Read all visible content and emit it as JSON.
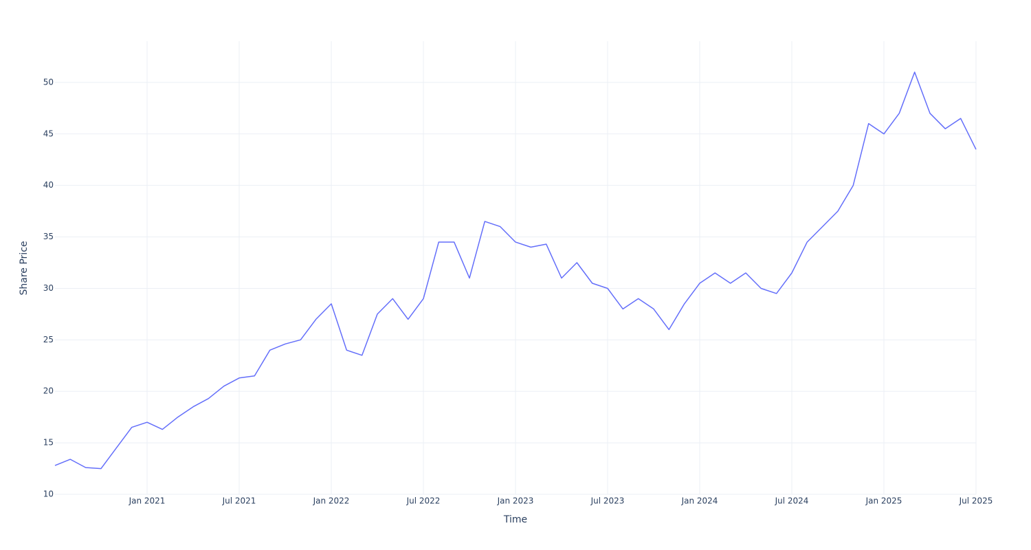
{
  "chart_data": {
    "type": "line",
    "xlabel": "Time",
    "ylabel": "Share Price",
    "x": [
      "2020-07",
      "2020-08",
      "2020-09",
      "2020-10",
      "2020-11",
      "2020-12",
      "2021-01",
      "2021-02",
      "2021-03",
      "2021-04",
      "2021-05",
      "2021-06",
      "2021-07",
      "2021-08",
      "2021-09",
      "2021-10",
      "2021-11",
      "2021-12",
      "2022-01",
      "2022-02",
      "2022-03",
      "2022-04",
      "2022-05",
      "2022-06",
      "2022-07",
      "2022-08",
      "2022-09",
      "2022-10",
      "2022-11",
      "2022-12",
      "2023-01",
      "2023-02",
      "2023-03",
      "2023-04",
      "2023-05",
      "2023-06",
      "2023-07",
      "2023-08",
      "2023-09",
      "2023-10",
      "2023-11",
      "2023-12",
      "2024-01",
      "2024-02",
      "2024-03",
      "2024-04",
      "2024-05",
      "2024-06",
      "2024-07",
      "2024-08",
      "2024-09",
      "2024-10",
      "2024-11",
      "2024-12",
      "2025-01",
      "2025-02",
      "2025-03",
      "2025-04",
      "2025-05",
      "2025-06",
      "2025-07"
    ],
    "series": [
      {
        "name": "Share Price",
        "color": "#636efa",
        "values": [
          12.8,
          13.4,
          12.6,
          12.5,
          14.5,
          16.5,
          17.0,
          16.3,
          17.5,
          18.5,
          19.3,
          20.5,
          21.3,
          21.5,
          24.0,
          24.6,
          25.0,
          27.0,
          28.5,
          24.0,
          23.5,
          27.5,
          29.0,
          27.0,
          29.0,
          34.5,
          34.5,
          31.0,
          36.5,
          36.0,
          34.5,
          34.0,
          34.3,
          31.0,
          32.5,
          30.5,
          30.0,
          28.0,
          29.0,
          28.0,
          26.0,
          28.5,
          30.5,
          31.5,
          30.5,
          31.5,
          30.0,
          29.5,
          31.5,
          34.5,
          36.0,
          37.5,
          40.0,
          46.0,
          45.0,
          47.0,
          51.0,
          47.0,
          45.5,
          46.5,
          43.5
        ]
      }
    ],
    "xlim": [
      "2020-07",
      "2025-07"
    ],
    "xticks": [
      {
        "value": "2021-01",
        "label": "Jan 2021"
      },
      {
        "value": "2021-07",
        "label": "Jul 2021"
      },
      {
        "value": "2022-01",
        "label": "Jan 2022"
      },
      {
        "value": "2022-07",
        "label": "Jul 2022"
      },
      {
        "value": "2023-01",
        "label": "Jan 2023"
      },
      {
        "value": "2023-07",
        "label": "Jul 2023"
      },
      {
        "value": "2024-01",
        "label": "Jan 2024"
      },
      {
        "value": "2024-07",
        "label": "Jul 2024"
      },
      {
        "value": "2025-01",
        "label": "Jan 2025"
      },
      {
        "value": "2025-07",
        "label": "Jul 2025"
      }
    ],
    "ylim": [
      10,
      54
    ],
    "yticks": [
      10,
      15,
      20,
      25,
      30,
      35,
      40,
      45,
      50
    ],
    "grid": true
  }
}
